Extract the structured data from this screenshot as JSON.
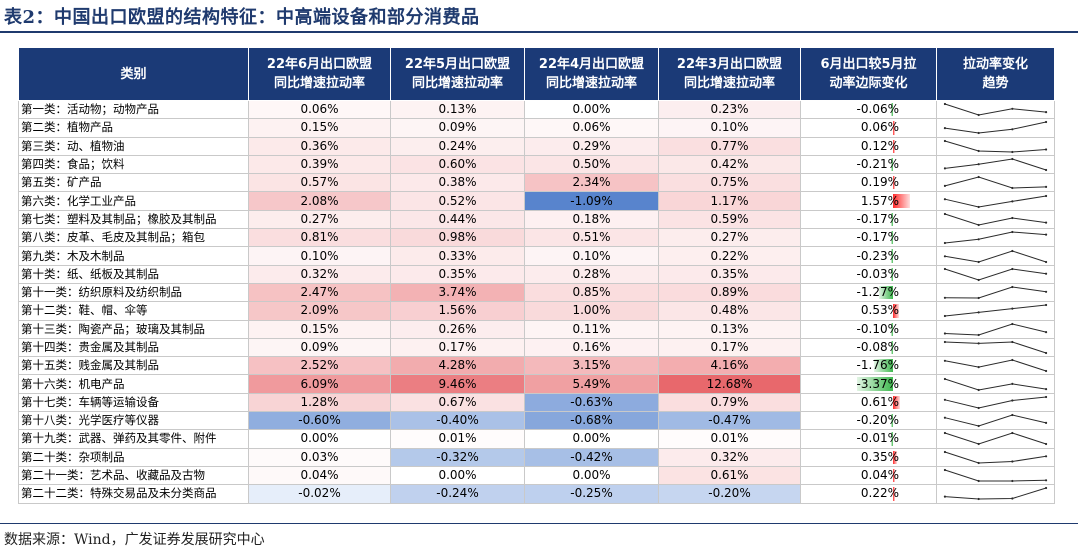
{
  "title": "表2：中国出口欧盟的结构特征：中高端设备和部分消费品",
  "headers": [
    [
      "类别"
    ],
    [
      "22年6月出口欧盟",
      "同比增速拉动率"
    ],
    [
      "22年5月出口欧盟",
      "同比增速拉动率"
    ],
    [
      "22年4月出口欧盟",
      "同比增速拉动率"
    ],
    [
      "22年3月出口欧盟",
      "同比增速拉动率"
    ],
    [
      "6月出口较5月拉",
      "动率边际变化"
    ],
    [
      "拉动率变化",
      "趋势"
    ]
  ],
  "rows": [
    {
      "cat": "第一类：活动物；动物产品",
      "m6": "0.06%",
      "m5": "0.13%",
      "m4": "0.00%",
      "m3": "0.23%",
      "chg": "-0.06%",
      "v": [
        0.23,
        0.0,
        0.13,
        0.06
      ]
    },
    {
      "cat": "第二类：植物产品",
      "m6": "0.15%",
      "m5": "0.09%",
      "m4": "0.06%",
      "m3": "0.10%",
      "chg": "0.06%",
      "v": [
        0.1,
        0.06,
        0.09,
        0.15
      ]
    },
    {
      "cat": "第三类：动、植物油",
      "m6": "0.36%",
      "m5": "0.24%",
      "m4": "0.29%",
      "m3": "0.77%",
      "chg": "0.12%",
      "v": [
        0.77,
        0.29,
        0.24,
        0.36
      ]
    },
    {
      "cat": "第四类：食品；饮料",
      "m6": "0.39%",
      "m5": "0.60%",
      "m4": "0.50%",
      "m3": "0.42%",
      "chg": "-0.21%",
      "v": [
        0.42,
        0.5,
        0.6,
        0.39
      ]
    },
    {
      "cat": "第五类：矿产品",
      "m6": "0.57%",
      "m5": "0.38%",
      "m4": "2.34%",
      "m3": "0.75%",
      "chg": "0.19%",
      "v": [
        0.75,
        2.34,
        0.38,
        0.57
      ]
    },
    {
      "cat": "第六类：化学工业产品",
      "m6": "2.08%",
      "m5": "0.52%",
      "m4": "-1.09%",
      "m3": "1.17%",
      "chg": "1.57%",
      "v": [
        1.17,
        -1.09,
        0.52,
        2.08
      ]
    },
    {
      "cat": "第七类：塑料及其制品；橡胶及其制品",
      "m6": "0.27%",
      "m5": "0.44%",
      "m4": "0.18%",
      "m3": "0.59%",
      "chg": "-0.17%",
      "v": [
        0.59,
        0.18,
        0.44,
        0.27
      ]
    },
    {
      "cat": "第八类：皮革、毛皮及其制品；箱包",
      "m6": "0.81%",
      "m5": "0.98%",
      "m4": "0.51%",
      "m3": "0.27%",
      "chg": "-0.17%",
      "v": [
        0.27,
        0.51,
        0.98,
        0.81
      ]
    },
    {
      "cat": "第九类：木及木制品",
      "m6": "0.10%",
      "m5": "0.33%",
      "m4": "0.10%",
      "m3": "0.22%",
      "chg": "-0.23%",
      "v": [
        0.22,
        0.1,
        0.33,
        0.1
      ]
    },
    {
      "cat": "第十类：纸、纸板及其制品",
      "m6": "0.32%",
      "m5": "0.35%",
      "m4": "0.28%",
      "m3": "0.35%",
      "chg": "-0.03%",
      "v": [
        0.35,
        0.28,
        0.35,
        0.32
      ]
    },
    {
      "cat": "第十一类：纺织原料及纺织制品",
      "m6": "2.47%",
      "m5": "3.74%",
      "m4": "0.85%",
      "m3": "0.89%",
      "chg": "-1.27%",
      "v": [
        0.89,
        0.85,
        3.74,
        2.47
      ]
    },
    {
      "cat": "第十二类：鞋、帽、伞等",
      "m6": "2.09%",
      "m5": "1.56%",
      "m4": "1.00%",
      "m3": "0.48%",
      "chg": "0.53%",
      "v": [
        0.48,
        1.0,
        1.56,
        2.09
      ]
    },
    {
      "cat": "第十三类：陶瓷产品；玻璃及其制品",
      "m6": "0.15%",
      "m5": "0.26%",
      "m4": "0.11%",
      "m3": "0.13%",
      "chg": "-0.10%",
      "v": [
        0.13,
        0.11,
        0.26,
        0.15
      ]
    },
    {
      "cat": "第十四类：贵金属及其制品",
      "m6": "0.09%",
      "m5": "0.17%",
      "m4": "0.16%",
      "m3": "0.17%",
      "chg": "-0.08%",
      "v": [
        0.17,
        0.16,
        0.17,
        0.09
      ]
    },
    {
      "cat": "第十五类：贱金属及其制品",
      "m6": "2.52%",
      "m5": "4.28%",
      "m4": "3.15%",
      "m3": "4.16%",
      "chg": "-1.76%",
      "v": [
        4.16,
        3.15,
        4.28,
        2.52
      ]
    },
    {
      "cat": "第十六类：机电产品",
      "m6": "6.09%",
      "m5": "9.46%",
      "m4": "5.49%",
      "m3": "12.68%",
      "chg": "-3.37%",
      "v": [
        12.68,
        5.49,
        9.46,
        6.09
      ]
    },
    {
      "cat": "第十七类：车辆等运输设备",
      "m6": "1.28%",
      "m5": "0.67%",
      "m4": "-0.63%",
      "m3": "0.79%",
      "chg": "0.61%",
      "v": [
        0.79,
        -0.63,
        0.67,
        1.28
      ]
    },
    {
      "cat": "第十八类：光学医疗等仪器",
      "m6": "-0.60%",
      "m5": "-0.40%",
      "m4": "-0.68%",
      "m3": "-0.47%",
      "chg": "-0.20%",
      "v": [
        -0.47,
        -0.68,
        -0.4,
        -0.6
      ]
    },
    {
      "cat": "第十九类：武器、弹药及其零件、附件",
      "m6": "0.00%",
      "m5": "0.01%",
      "m4": "0.00%",
      "m3": "0.01%",
      "chg": "-0.01%",
      "v": [
        0.01,
        0.0,
        0.01,
        0.0
      ]
    },
    {
      "cat": "第二十类：杂项制品",
      "m6": "0.03%",
      "m5": "-0.32%",
      "m4": "-0.42%",
      "m3": "0.32%",
      "chg": "0.35%",
      "v": [
        0.32,
        -0.42,
        -0.32,
        0.03
      ]
    },
    {
      "cat": "第二十一类：艺术品、收藏品及古物",
      "m6": "0.04%",
      "m5": "0.00%",
      "m4": "0.00%",
      "m3": "0.61%",
      "chg": "0.04%",
      "v": [
        0.61,
        0.0,
        0.0,
        0.04
      ]
    },
    {
      "cat": "第二十二类：特殊交易品及未分类商品",
      "m6": "-0.02%",
      "m5": "-0.24%",
      "m4": "-0.25%",
      "m3": "-0.20%",
      "chg": "0.22%",
      "v": [
        -0.2,
        -0.25,
        -0.24,
        -0.02
      ]
    }
  ],
  "source": "数据来源：Wind，广发证券发展研究中心"
}
